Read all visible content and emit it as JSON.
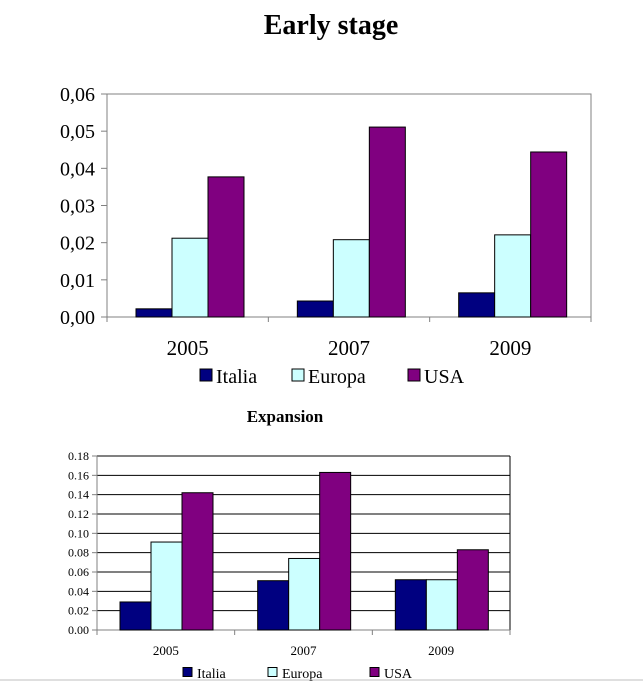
{
  "chart_data": [
    {
      "type": "bar",
      "title": "Early stage",
      "categories": [
        "2005",
        "2007",
        "2009"
      ],
      "series": [
        {
          "name": "Italia",
          "values": [
            0.0022,
            0.0043,
            0.0065
          ]
        },
        {
          "name": "Europa",
          "values": [
            0.0212,
            0.0208,
            0.0221
          ]
        },
        {
          "name": "USA",
          "values": [
            0.0377,
            0.0511,
            0.0444
          ]
        }
      ],
      "ylim": [
        0,
        0.06
      ],
      "yticks": [
        "0,00",
        "0,01",
        "0,02",
        "0,03",
        "0,04",
        "0,05",
        "0,06"
      ],
      "grid": false,
      "legend": "bottom"
    },
    {
      "type": "bar",
      "title": "Expansion",
      "categories": [
        "2005",
        "2007",
        "2009"
      ],
      "series": [
        {
          "name": "Italia",
          "values": [
            0.029,
            0.051,
            0.052
          ]
        },
        {
          "name": "Europa",
          "values": [
            0.091,
            0.074,
            0.052
          ]
        },
        {
          "name": "USA",
          "values": [
            0.142,
            0.163,
            0.083
          ]
        }
      ],
      "ylim": [
        0,
        0.18
      ],
      "yticks": [
        "0.00",
        "0.02",
        "0.04",
        "0.06",
        "0.08",
        "0.10",
        "0.12",
        "0.14",
        "0.16",
        "0.18"
      ],
      "grid": true,
      "legend": "bottom"
    }
  ],
  "colors": {
    "Italia": "#000080",
    "Europa": "#ccffff",
    "USA": "#800080",
    "plot_bg": "#ffffff",
    "axis": "#808080",
    "border": "#808080"
  }
}
